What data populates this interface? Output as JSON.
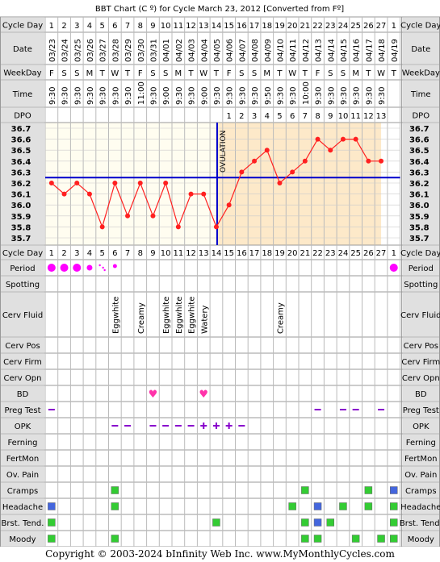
{
  "title": "BBT Chart (C º) for Cycle March 23, 2012  [Converted from Fº]",
  "copyright": "Copyright © 2003-2024 bInfinity Web Inc.    www.MyMonthlyCycles.com",
  "ovulation_label": "OVULATION",
  "labels": {
    "cycle_day": "Cycle Day",
    "date": "Date",
    "weekday": "WeekDay",
    "time": "Time",
    "dpo": "DPO",
    "period": "Period",
    "spotting": "Spotting",
    "cerv_fluid": "Cerv Fluid",
    "cerv_pos": "Cerv Pos",
    "cerv_firm": "Cerv Firm",
    "cerv_opn": "Cerv Opn",
    "bd": "BD",
    "preg_test": "Preg Test",
    "opk": "OPK",
    "ferning": "Ferning",
    "fertmon": "FertMon",
    "ov_pain": "Ov. Pain",
    "cramps": "Cramps",
    "headache": "Headache",
    "brst_tend": "Brst. Tend.",
    "moody": "Moody"
  },
  "cycle_days": [
    "1",
    "2",
    "3",
    "4",
    "5",
    "6",
    "7",
    "8",
    "9",
    "10",
    "11",
    "12",
    "13",
    "14",
    "15",
    "16",
    "17",
    "18",
    "19",
    "20",
    "21",
    "22",
    "23",
    "24",
    "25",
    "26",
    "27",
    "1"
  ],
  "dates": [
    "03/23",
    "03/24",
    "03/25",
    "03/26",
    "03/27",
    "03/28",
    "03/29",
    "03/30",
    "03/31",
    "04/01",
    "04/02",
    "04/03",
    "04/04",
    "04/05",
    "04/06",
    "04/07",
    "04/08",
    "04/09",
    "04/10",
    "04/11",
    "04/12",
    "04/13",
    "04/14",
    "04/15",
    "04/16",
    "04/17",
    "04/18",
    "04/19"
  ],
  "weekdays": [
    "F",
    "S",
    "S",
    "M",
    "T",
    "W",
    "T",
    "F",
    "S",
    "S",
    "M",
    "T",
    "W",
    "T",
    "F",
    "S",
    "S",
    "M",
    "T",
    "W",
    "T",
    "F",
    "S",
    "S",
    "M",
    "T",
    "W",
    "T"
  ],
  "times": [
    "9:30",
    "9:30",
    "9:30",
    "9:30",
    "9:30",
    "9:30",
    "9:30",
    "11:00",
    "9:30",
    "9:00",
    "9:30",
    "9:30",
    "9:00",
    "9:30",
    "9:30",
    "9:30",
    "9:30",
    "9:50",
    "9:30",
    "9:30",
    "10:00",
    "9:30",
    "9:30",
    "9:30",
    "9:30",
    "9:30",
    "9:30",
    ""
  ],
  "dpo": [
    "",
    "",
    "",
    "",
    "",
    "",
    "",
    "",
    "",
    "",
    "",
    "",
    "",
    "",
    "1",
    "2",
    "3",
    "4",
    "5",
    "6",
    "7",
    "8",
    "9",
    "10",
    "11",
    "12",
    "13",
    ""
  ],
  "colors": {
    "grid": "#999999",
    "label_bg": "#e0e0e0",
    "preovulation_bg": "#fffdf0",
    "postovulation_bg": "#fde9c9",
    "temp_line": "#ff2020",
    "coverline": "#0000cc",
    "ovulation_line": "#0000cc",
    "period": "#ff00ff",
    "bd_heart": "#ff33aa",
    "symptom_green": "#33cc33",
    "symptom_blue": "#4466dd",
    "opk_color": "#8800cc",
    "preg_color": "#8800cc"
  },
  "chart_data": {
    "type": "line",
    "x": [
      "1",
      "2",
      "3",
      "4",
      "5",
      "6",
      "7",
      "8",
      "9",
      "10",
      "11",
      "12",
      "13",
      "14",
      "15",
      "16",
      "17",
      "18",
      "19",
      "20",
      "21",
      "22",
      "23",
      "24",
      "25",
      "26",
      "27"
    ],
    "temps": [
      36.2,
      36.1,
      36.2,
      36.1,
      35.8,
      36.2,
      35.9,
      36.2,
      35.9,
      36.2,
      35.8,
      36.1,
      36.1,
      35.8,
      36.0,
      36.3,
      36.4,
      36.5,
      36.2,
      36.3,
      36.4,
      36.6,
      36.5,
      36.6,
      36.6,
      36.4,
      36.4
    ],
    "ylim": [
      35.7,
      36.7
    ],
    "ytick_labels": [
      "36.7",
      "36.6",
      "36.5",
      "36.4",
      "36.3",
      "36.2",
      "36.1",
      "36.0",
      "35.9",
      "35.8",
      "35.7"
    ],
    "coverline": 36.25,
    "ovulation_day": 14
  },
  "period": [
    "heavy",
    "heavy",
    "heavy",
    "medium",
    "spotting",
    "light",
    "",
    "",
    "",
    "",
    "",
    "",
    "",
    "",
    "",
    "",
    "",
    "",
    "",
    "",
    "",
    "",
    "",
    "",
    "",
    "",
    "",
    "heavy"
  ],
  "cerv_fluid": [
    "",
    "",
    "",
    "",
    "",
    "Eggwhite",
    "",
    "Creamy",
    "",
    "Eggwhite",
    "Eggwhite",
    "Eggwhite",
    "Watery",
    "",
    "",
    "",
    "",
    "",
    "Creamy",
    "",
    "",
    "",
    "",
    "",
    "",
    "",
    "",
    ""
  ],
  "bd": [
    0,
    0,
    0,
    0,
    0,
    0,
    0,
    0,
    1,
    0,
    0,
    0,
    1,
    0,
    0,
    0,
    0,
    0,
    0,
    0,
    0,
    0,
    0,
    0,
    0,
    0,
    0,
    0
  ],
  "preg_test": [
    "dash",
    "",
    "",
    "",
    "",
    "",
    "",
    "",
    "",
    "",
    "",
    "",
    "",
    "",
    "",
    "",
    "",
    "",
    "",
    "",
    "",
    "dash",
    "",
    "dash",
    "dash",
    "",
    "dash",
    ""
  ],
  "opk": [
    "",
    "",
    "",
    "",
    "",
    "dash",
    "dash",
    "",
    "dash",
    "dash",
    "dash",
    "dash",
    "plus",
    "plus",
    "plus",
    "dash",
    "",
    "",
    "",
    "",
    "",
    "",
    "",
    "",
    "",
    "",
    "",
    ""
  ],
  "cramps": [
    "",
    "",
    "",
    "",
    "",
    "g",
    "",
    "",
    "",
    "",
    "",
    "",
    "",
    "",
    "",
    "",
    "",
    "",
    "",
    "",
    "g",
    "",
    "",
    "",
    "",
    "g",
    "",
    "b"
  ],
  "headache": [
    "b",
    "",
    "",
    "",
    "",
    "g",
    "",
    "",
    "",
    "",
    "",
    "",
    "",
    "",
    "",
    "",
    "",
    "",
    "",
    "g",
    "",
    "b",
    "",
    "g",
    "",
    "g",
    "",
    "g"
  ],
  "brst_tend": [
    "g",
    "",
    "",
    "",
    "",
    "",
    "",
    "",
    "",
    "",
    "",
    "",
    "",
    "g",
    "",
    "",
    "",
    "",
    "",
    "",
    "g",
    "b",
    "g",
    "",
    "",
    "",
    "",
    "g"
  ],
  "moody": [
    "g",
    "",
    "",
    "",
    "",
    "g",
    "",
    "",
    "",
    "",
    "",
    "",
    "",
    "",
    "",
    "",
    "",
    "",
    "",
    "",
    "g",
    "g",
    "",
    "",
    "g",
    "",
    "g",
    "g"
  ]
}
